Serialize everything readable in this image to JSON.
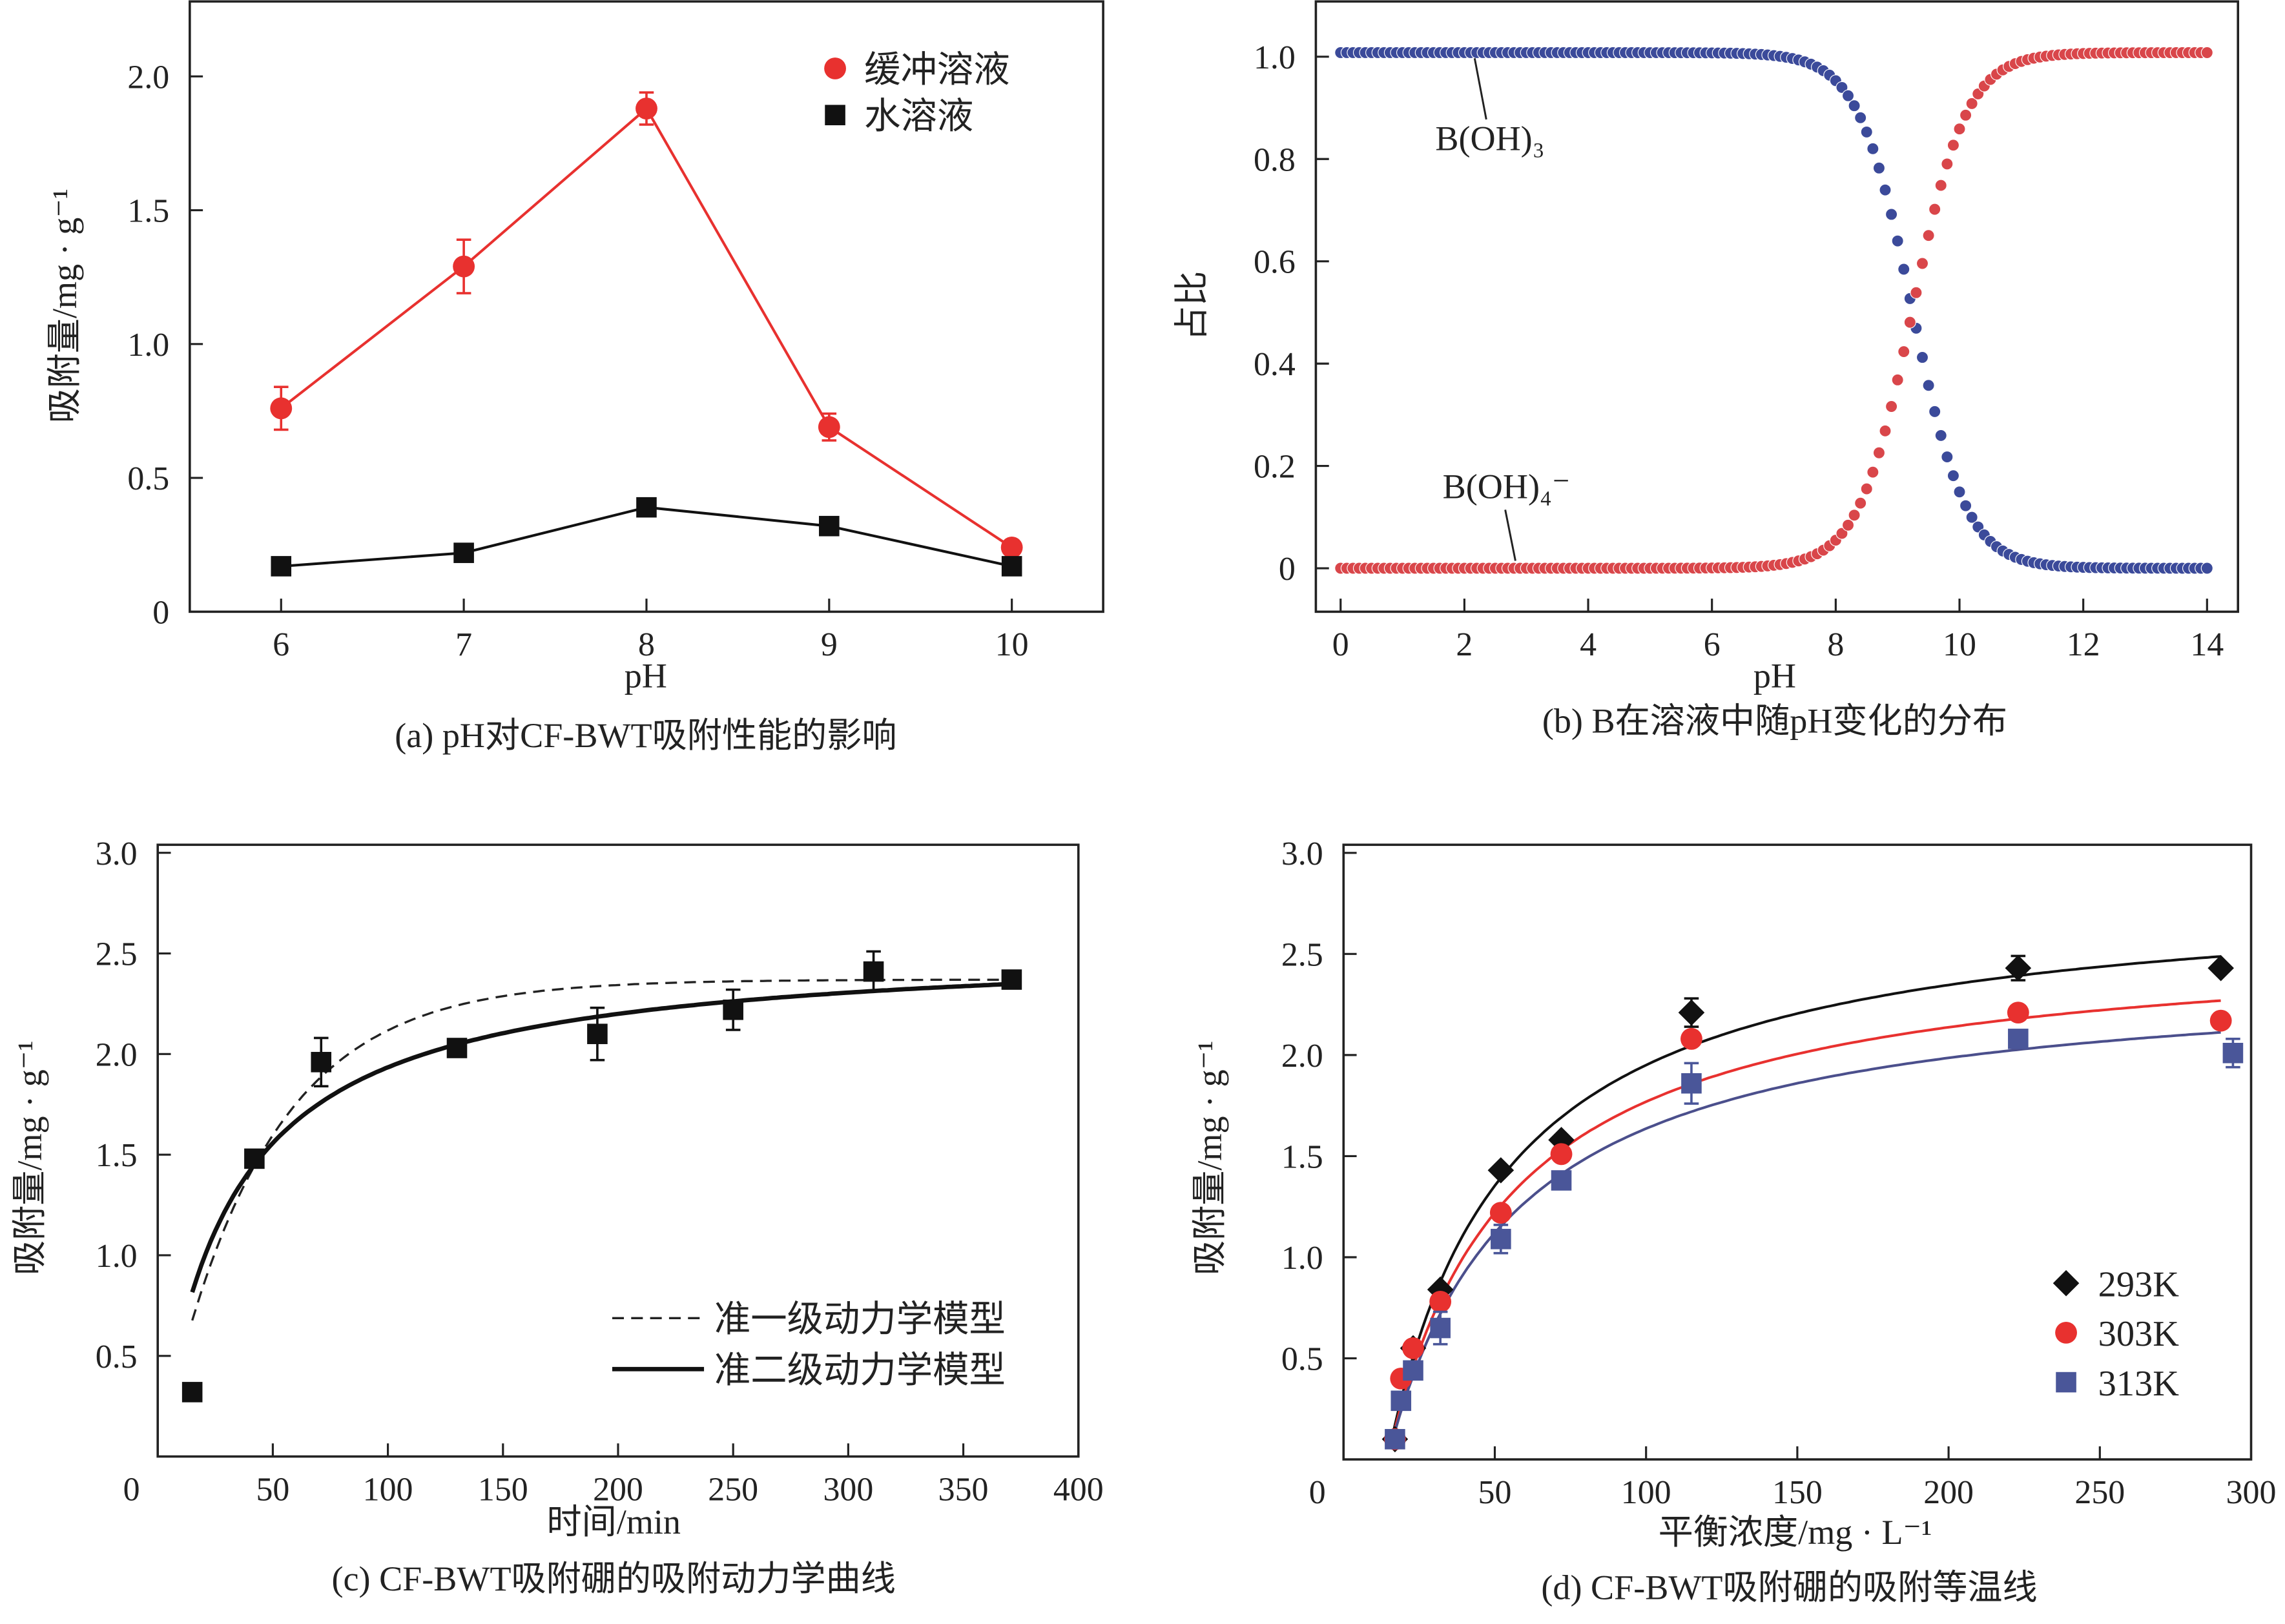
{
  "chart_data": [
    {
      "id": "a",
      "type": "line",
      "caption": "(a) pH对CF-BWT吸附性能的影响",
      "xlabel": "pH",
      "ylabel": "吸附量/mg · g⁻¹",
      "xlim": [
        5.5,
        10.5
      ],
      "ylim": [
        0,
        2.28
      ],
      "xticks": [
        6,
        7,
        8,
        9,
        10
      ],
      "xtick_labels": [
        "6",
        "7",
        "8",
        "9",
        "10"
      ],
      "yticks": [
        0,
        0.5,
        1.0,
        1.5,
        2.0
      ],
      "ytick_labels": [
        "0",
        "0.5",
        "1.0",
        "1.5",
        "2.0"
      ],
      "legend_placement": "top-right",
      "x": [
        6,
        7,
        8,
        9,
        10
      ],
      "series": [
        {
          "name": "缓冲溶液",
          "marker": "circle",
          "color": "#e8312f",
          "values": [
            0.76,
            1.29,
            1.88,
            0.69,
            0.24
          ],
          "errors": [
            0.08,
            0.1,
            0.06,
            0.05,
            0.02
          ]
        },
        {
          "name": "水溶液",
          "marker": "square",
          "color": "#111111",
          "values": [
            0.17,
            0.22,
            0.39,
            0.32,
            0.17
          ],
          "errors": [
            0,
            0,
            0,
            0,
            0
          ]
        }
      ]
    },
    {
      "id": "b",
      "type": "scatter",
      "caption": "(b) B在溶液中随pH变化的分布",
      "xlabel": "pH",
      "ylabel": "占比",
      "xlim": [
        -0.4,
        14.5
      ],
      "ylim": [
        -0.085,
        1.108
      ],
      "xticks": [
        0,
        2,
        4,
        6,
        8,
        10,
        12,
        14
      ],
      "xtick_labels": [
        "0",
        "2",
        "4",
        "6",
        "8",
        "10",
        "12",
        "14"
      ],
      "yticks": [
        0,
        0.2,
        0.4,
        0.6,
        0.8,
        1.0
      ],
      "ytick_labels": [
        "0",
        "0.2",
        "0.4",
        "0.6",
        "0.8",
        "1.0"
      ],
      "pKa": 9.24,
      "x_range": [
        0,
        14
      ],
      "series": [
        {
          "name": "B(OH)₃",
          "color": "#3b4a9a",
          "trend": "decreasing"
        },
        {
          "name": "B(OH)₄⁻",
          "color": "#d9464a",
          "trend": "increasing"
        }
      ]
    },
    {
      "id": "c",
      "type": "scatter",
      "caption": "(c) CF-BWT吸附硼的吸附动力学曲线",
      "xlabel": "时间/min",
      "ylabel": "吸附量/mg · g⁻¹",
      "xlim": [
        0,
        400
      ],
      "ylim": [
        0,
        3.04
      ],
      "xticks": [
        0,
        50,
        100,
        150,
        200,
        250,
        300,
        350,
        400
      ],
      "xtick_labels": [
        "0",
        "50",
        "100",
        "150",
        "200",
        "250",
        "300",
        "350",
        "400"
      ],
      "yticks": [
        0.5,
        1.0,
        1.5,
        2.0,
        2.5,
        3.0
      ],
      "ytick_labels": [
        "0.5",
        "1.0",
        "1.5",
        "2.0",
        "2.5",
        "3.0"
      ],
      "legend_placement": "bottom-right",
      "points": {
        "x": [
          15,
          42,
          71,
          130,
          191,
          250,
          311,
          371
        ],
        "y": [
          0.32,
          1.48,
          1.96,
          2.03,
          2.1,
          2.22,
          2.41,
          2.37
        ],
        "errors": [
          0,
          0,
          0.12,
          0,
          0.13,
          0.1,
          0.1,
          0
        ]
      },
      "fits": [
        {
          "name": "准一级动力学模型",
          "style": "dashed"
        },
        {
          "name": "准二级动力学模型",
          "style": "solid"
        }
      ]
    },
    {
      "id": "d",
      "type": "scatter",
      "caption": "(d) CF-BWT吸附硼的吸附等温线",
      "xlabel": "平衡浓度/mg · L⁻¹",
      "ylabel": "吸附量/mg · g⁻¹",
      "xlim": [
        0,
        300
      ],
      "ylim": [
        0,
        3.04
      ],
      "xticks": [
        0,
        50,
        100,
        150,
        200,
        250,
        300
      ],
      "xtick_labels": [
        "0",
        "50",
        "100",
        "150",
        "200",
        "250",
        "300"
      ],
      "yticks": [
        0.5,
        1.0,
        1.5,
        2.0,
        2.5,
        3.0
      ],
      "ytick_labels": [
        "0.5",
        "1.0",
        "1.5",
        "2.0",
        "2.5",
        "3.0"
      ],
      "legend_placement": "bottom-right",
      "series": [
        {
          "name": "293K",
          "marker": "diamond",
          "color": "#111111",
          "x": [
            17,
            23,
            32,
            52,
            72,
            115,
            223,
            290
          ],
          "y": [
            0.1,
            0.55,
            0.84,
            1.43,
            1.58,
            2.21,
            2.43,
            2.43
          ],
          "errors": [
            0,
            0,
            0,
            0,
            0,
            0.07,
            0.06,
            0
          ]
        },
        {
          "name": "303K",
          "marker": "circle",
          "color": "#e8312f",
          "x": [
            17,
            19,
            23,
            32,
            52,
            72,
            115,
            223,
            290
          ],
          "y": [
            0.1,
            0.4,
            0.55,
            0.78,
            1.22,
            1.51,
            2.08,
            2.21,
            2.17
          ],
          "errors": [
            0,
            0,
            0,
            0,
            0,
            0,
            0,
            0,
            0
          ]
        },
        {
          "name": "313K",
          "marker": "square",
          "color": "#4a5699",
          "x": [
            17,
            19,
            23,
            32,
            52,
            72,
            115,
            223,
            294
          ],
          "y": [
            0.1,
            0.29,
            0.44,
            0.65,
            1.09,
            1.38,
            1.86,
            2.08,
            2.01
          ],
          "errors": [
            0,
            0,
            0,
            0.08,
            0.07,
            0,
            0.1,
            0,
            0.07
          ]
        }
      ]
    }
  ]
}
